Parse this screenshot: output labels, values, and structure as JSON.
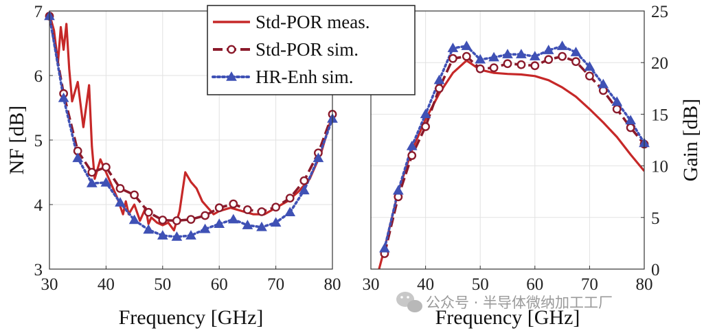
{
  "chart_data": [
    {
      "type": "line",
      "panel": "left",
      "xlabel": "Frequency [GHz]",
      "ylabel": "NF [dB]",
      "xlim": [
        30,
        80
      ],
      "ylim": [
        3,
        7
      ],
      "xticks": [
        30,
        40,
        50,
        60,
        70,
        80
      ],
      "yticks": [
        3,
        4,
        5,
        6,
        7
      ],
      "grid": true,
      "series": [
        {
          "name": "Std-POR meas.",
          "color": "#c62828",
          "style": "solid",
          "marker": "none",
          "x": [
            30,
            30.8,
            31.5,
            32,
            32.5,
            33,
            33.5,
            34,
            35,
            36,
            37,
            37.5,
            38,
            39,
            40,
            41,
            42,
            43,
            43.5,
            44,
            45,
            46,
            47,
            47.5,
            48,
            49,
            50,
            51,
            52,
            52.5,
            53,
            53.5,
            54,
            55,
            56,
            57,
            58,
            59,
            60,
            62,
            64,
            66,
            68,
            70,
            72,
            74,
            76,
            78,
            80
          ],
          "y": [
            6.95,
            6.7,
            6.2,
            6.75,
            6.4,
            6.8,
            6.1,
            5.6,
            5.9,
            5.2,
            5.85,
            4.9,
            4.4,
            4.7,
            4.5,
            4.3,
            4.1,
            3.85,
            4.05,
            3.85,
            4.0,
            3.75,
            3.95,
            3.7,
            3.8,
            3.72,
            3.68,
            3.72,
            3.6,
            3.75,
            3.9,
            4.2,
            4.5,
            4.35,
            4.25,
            4.05,
            3.95,
            3.85,
            3.9,
            3.95,
            3.9,
            3.85,
            3.85,
            3.95,
            4.05,
            4.2,
            4.4,
            4.8,
            5.4
          ]
        },
        {
          "name": "Std-POR sim.",
          "color": "#8b1a2b",
          "style": "dashed",
          "marker": "circle",
          "x": [
            30,
            32.5,
            35,
            37.5,
            40,
            42.5,
            45,
            47.5,
            50,
            52.5,
            55,
            57.5,
            60,
            62.5,
            65,
            67.5,
            70,
            72.5,
            75,
            77.5,
            80
          ],
          "y": [
            6.92,
            5.72,
            4.83,
            4.5,
            4.58,
            4.25,
            4.15,
            3.88,
            3.76,
            3.75,
            3.77,
            3.83,
            3.95,
            4.01,
            3.92,
            3.89,
            3.96,
            4.1,
            4.37,
            4.8,
            5.4
          ]
        },
        {
          "name": "HR-Enh sim.",
          "color": "#3f51b5",
          "style": "dotted",
          "marker": "triangle",
          "x": [
            30,
            32.5,
            35,
            37.5,
            40,
            42.5,
            45,
            47.5,
            50,
            52.5,
            55,
            57.5,
            60,
            62.5,
            65,
            67.5,
            70,
            72.5,
            75,
            77.5,
            80
          ],
          "y": [
            6.92,
            5.65,
            4.72,
            4.33,
            4.34,
            4.03,
            3.76,
            3.61,
            3.52,
            3.5,
            3.52,
            3.62,
            3.7,
            3.77,
            3.68,
            3.65,
            3.72,
            3.88,
            4.22,
            4.72,
            5.33
          ]
        }
      ],
      "legend": {
        "location": "top-center",
        "entries": [
          "Std-POR meas.",
          "Std-POR sim.",
          "HR-Enh sim."
        ]
      }
    },
    {
      "type": "line",
      "panel": "right",
      "xlabel": "Frequency [GHz]",
      "ylabel": "Gain [dB]",
      "ylabel_side": "right",
      "xlim": [
        30,
        80
      ],
      "ylim": [
        0,
        25
      ],
      "xticks": [
        30,
        40,
        50,
        60,
        70,
        80
      ],
      "yticks": [
        0,
        5,
        10,
        15,
        20,
        25
      ],
      "grid": true,
      "series": [
        {
          "name": "Std-POR meas.",
          "color": "#c62828",
          "style": "solid",
          "marker": "none",
          "x": [
            31.5,
            32.5,
            35,
            37.5,
            40,
            42.5,
            45,
            47.5,
            50,
            52.5,
            55,
            57.5,
            60,
            62.5,
            65,
            67.5,
            70,
            72.5,
            75,
            77.5,
            80
          ],
          "y": [
            0.0,
            2.0,
            7.5,
            11.5,
            14.5,
            17.0,
            19.0,
            20.2,
            19.3,
            19.0,
            18.9,
            18.85,
            18.7,
            18.3,
            17.6,
            16.7,
            15.5,
            14.2,
            12.8,
            11.1,
            9.5
          ]
        },
        {
          "name": "Std-POR sim.",
          "color": "#8b1a2b",
          "style": "dashed",
          "marker": "circle",
          "x": [
            32.5,
            35,
            37.5,
            40,
            42.5,
            45,
            47.5,
            50,
            52.5,
            55,
            57.5,
            60,
            62.5,
            65,
            67.5,
            70,
            72.5,
            75,
            77.5,
            80
          ],
          "y": [
            1.5,
            7.0,
            11.0,
            13.8,
            17.5,
            20.4,
            20.6,
            19.4,
            19.5,
            19.9,
            19.8,
            19.7,
            20.3,
            20.6,
            20.1,
            18.7,
            17.3,
            15.5,
            13.7,
            12.1
          ]
        },
        {
          "name": "HR-Enh sim.",
          "color": "#3f51b5",
          "style": "dotted",
          "marker": "triangle",
          "x": [
            32.5,
            35,
            37.5,
            40,
            42.5,
            45,
            47.5,
            50,
            52.5,
            55,
            57.5,
            60,
            62.5,
            65,
            67.5,
            70,
            72.5,
            75,
            77.5,
            80
          ],
          "y": [
            2.0,
            7.6,
            11.9,
            15.0,
            18.3,
            21.4,
            21.6,
            20.3,
            20.5,
            20.8,
            20.8,
            20.6,
            21.2,
            21.6,
            21.0,
            19.6,
            17.9,
            16.2,
            14.4,
            12.2
          ]
        }
      ]
    }
  ],
  "watermark": {
    "text": "公众号 · 半导体微纳加工工厂",
    "icon": "wechat-icon"
  }
}
